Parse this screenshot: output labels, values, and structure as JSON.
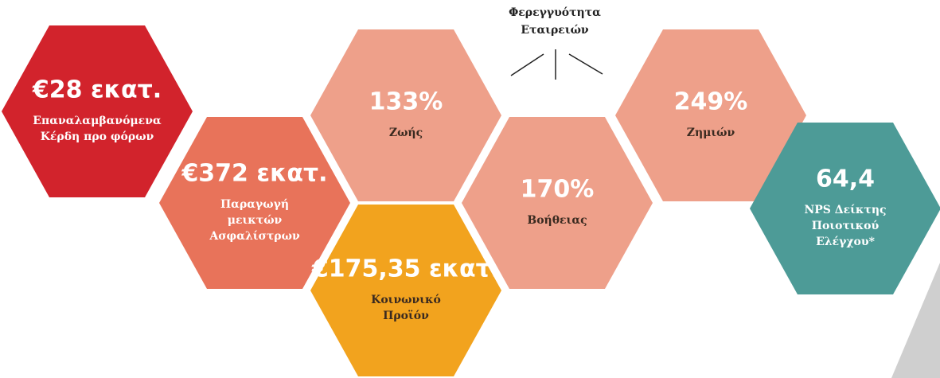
{
  "header": {
    "lines": [
      "Φερεγγυότητα",
      "Εταιρειών"
    ]
  },
  "hexagons": [
    {
      "value": "€28 εκατ.",
      "label_lines": [
        "Επαναλαμβανόμενα",
        "Κέρδη προ φόρων"
      ],
      "color": "#d2232c"
    },
    {
      "value": "€372 εκατ.",
      "label_lines": [
        "Παραγωγή",
        "μεικτών",
        "Ασφαλίστρων"
      ],
      "color": "#e8735a"
    },
    {
      "value": "133%",
      "label_lines": [
        "Ζωής"
      ],
      "color": "#eea08a"
    },
    {
      "value": "€175,35 εκατ.",
      "label_lines": [
        "Κοινωνικό",
        "Προϊόν"
      ],
      "color": "#f2a31e"
    },
    {
      "value": "170%",
      "label_lines": [
        "Βοήθειας"
      ],
      "color": "#eea08a"
    },
    {
      "value": "249%",
      "label_lines": [
        "Ζημιών"
      ],
      "color": "#eea08a"
    },
    {
      "value": "64,4",
      "label_lines": [
        "NPS Δείκτης",
        "Ποιοτικού",
        "Ελέγχου*"
      ],
      "color": "#4d9b97"
    }
  ]
}
